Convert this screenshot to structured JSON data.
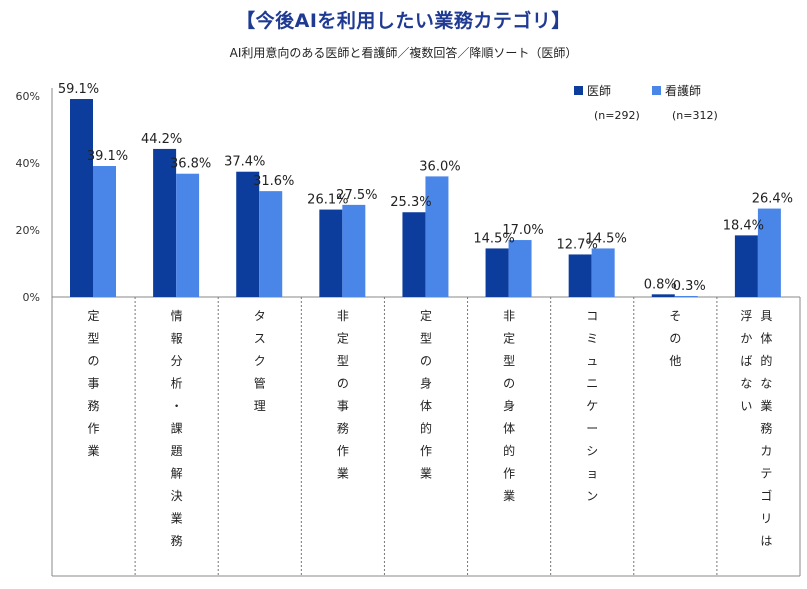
{
  "chart_data": {
    "type": "bar",
    "title": "【今後AIを利用したい業務カテゴリ】",
    "subtitle": "AI利用意向のある医師と看護師／複数回答／降順ソート（医師）",
    "ylim": [
      0,
      60
    ],
    "yticks": [
      "0%",
      "20%",
      "40%",
      "60%"
    ],
    "ytick_values": [
      0,
      20,
      40,
      60
    ],
    "categories": [
      "定型の事務作業",
      "情報分析・課題解決業務",
      "タスク管理",
      "非定型の事務作業",
      "定型の身体的作業",
      "非定型の身体的作業",
      "コミュニケーション",
      "その他",
      "具体的な業務カテゴリは浮かばない"
    ],
    "category_columns": [
      [
        [
          "定",
          "型",
          "の",
          "事",
          "務",
          "作",
          "業"
        ]
      ],
      [
        [
          "情",
          "報",
          "分",
          "析",
          "・",
          "課",
          "題",
          "解",
          "決",
          "業",
          "務"
        ]
      ],
      [
        [
          "タ",
          "ス",
          "ク",
          "管",
          "理"
        ]
      ],
      [
        [
          "非",
          "定",
          "型",
          "の",
          "事",
          "務",
          "作",
          "業"
        ]
      ],
      [
        [
          "定",
          "型",
          "の",
          "身",
          "体",
          "的",
          "作",
          "業"
        ]
      ],
      [
        [
          "非",
          "定",
          "型",
          "の",
          "身",
          "体",
          "的",
          "作",
          "業"
        ]
      ],
      [
        [
          "コ",
          "ミ",
          "ュ",
          "ニ",
          "ケ",
          "ー",
          "シ",
          "ョ",
          "ン"
        ]
      ],
      [
        [
          "そ",
          "の",
          "他"
        ]
      ],
      [
        [
          "具",
          "体",
          "的",
          "な",
          "業",
          "務",
          "カ",
          "テ",
          "ゴ",
          "リ",
          "は"
        ],
        [
          "浮",
          "か",
          "ば",
          "な",
          "い"
        ]
      ]
    ],
    "series": [
      {
        "name": "医師",
        "n_label": "(n=292)",
        "color": "#0d3d9c",
        "values": [
          59.1,
          44.2,
          37.4,
          26.1,
          25.3,
          14.5,
          12.7,
          0.8,
          18.4
        ],
        "labels": [
          "59.1%",
          "44.2%",
          "37.4%",
          "26.1%",
          "25.3%",
          "14.5%",
          "12.7%",
          "0.8%",
          "18.4%"
        ]
      },
      {
        "name": "看護師",
        "n_label": "(n=312)",
        "color": "#4a86e8",
        "values": [
          39.1,
          36.8,
          31.6,
          27.5,
          36.0,
          17.0,
          14.5,
          0.3,
          26.4
        ],
        "labels": [
          "39.1%",
          "36.8%",
          "31.6%",
          "27.5%",
          "36.0%",
          "17.0%",
          "14.5%",
          "0.3%",
          "26.4%"
        ]
      }
    ],
    "legend_position": "top-right",
    "grid": false
  }
}
